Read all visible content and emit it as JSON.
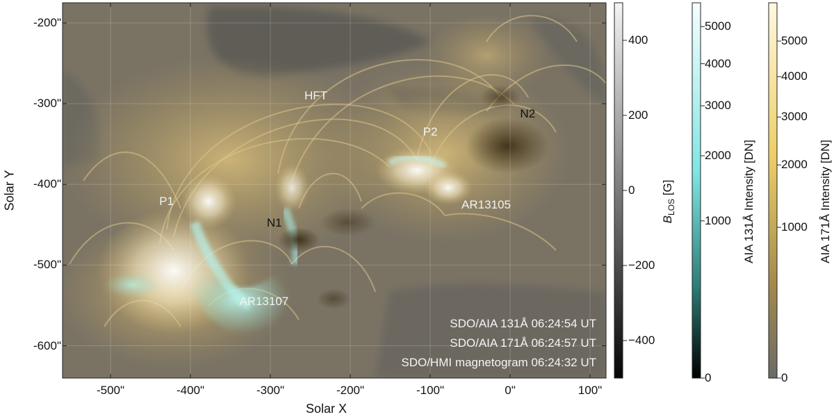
{
  "axes": {
    "xlabel": "Solar X",
    "ylabel": "Solar Y",
    "xticks": [
      -500,
      -400,
      -300,
      -200,
      -100,
      0,
      100
    ],
    "xtick_labels": [
      "-500\"",
      "-400\"",
      "-300\"",
      "-200\"",
      "-100\"",
      "0\"",
      "100\""
    ],
    "yticks": [
      -200,
      -300,
      -400,
      -500,
      -600
    ],
    "ytick_labels": [
      "-200\"",
      "-300\"",
      "-400\"",
      "-500\"",
      "-600\""
    ],
    "xlim": [
      -560,
      120
    ],
    "ylim": [
      -640,
      -175
    ]
  },
  "features": [
    {
      "label": "HFT",
      "x": -243,
      "y": -290,
      "color": "#f2f2f2"
    },
    {
      "label": "P2",
      "x": -100,
      "y": -335,
      "color": "#f2f2f2"
    },
    {
      "label": "N2",
      "x": 22,
      "y": -313,
      "color": "#111111"
    },
    {
      "label": "P1",
      "x": -430,
      "y": -421,
      "color": "#f2f2f2"
    },
    {
      "label": "N1",
      "x": -295,
      "y": -448,
      "color": "#111111"
    },
    {
      "label": "AR13105",
      "x": -30,
      "y": -426,
      "color": "#f2f2f2"
    },
    {
      "label": "AR13107",
      "x": -308,
      "y": -545,
      "color": "#f2f2f2"
    }
  ],
  "stamps": [
    "SDO/AIA 131Å 06:24:54 UT",
    "SDO/AIA 171Å 06:24:57 UT",
    "SDO/HMI magnetogram 06:24:32 UT"
  ],
  "colorbars": {
    "blos": {
      "title_main": "B",
      "title_sub": "LOS",
      "title_unit": " [G]",
      "range": [
        -500,
        500
      ],
      "ticks": [
        400,
        200,
        0,
        -200,
        -400
      ],
      "tick_labels": [
        "400",
        "200",
        "0",
        "−200",
        "−400"
      ]
    },
    "aia131": {
      "title": "AIA 131Å Intensity [DN]",
      "scale": "sqrt",
      "max": 5700,
      "ticks": [
        5000,
        4000,
        3000,
        2000,
        1000,
        0
      ],
      "tick_labels": [
        "5000",
        "4000",
        "3000",
        "2000",
        "1000",
        "0"
      ]
    },
    "aia171": {
      "title": "AIA 171Å Intensity [DN]",
      "scale": "sqrt",
      "max": 6200,
      "ticks": [
        5000,
        4000,
        3000,
        2000,
        1000,
        0
      ],
      "tick_labels": [
        "5000",
        "4000",
        "3000",
        "2000",
        "1000",
        "0"
      ]
    }
  },
  "colors": {
    "loops": "#c9ad6a",
    "background": "#6d6a61",
    "hot_plasma": "#8ed8cc",
    "cb131_top": "#f2fbff",
    "cb131_mid": "#6fe0e0",
    "cb171_top": "#fff7dd",
    "cb171_mid": "#f0d060"
  }
}
